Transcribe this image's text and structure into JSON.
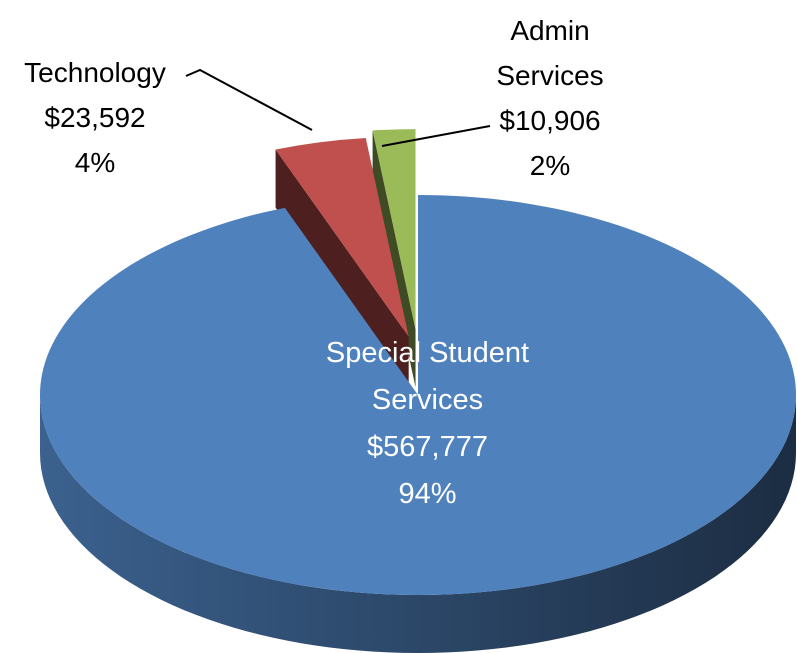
{
  "chart_data": {
    "type": "pie3d",
    "categories": [
      "Special Student Services",
      "Technology",
      "Admin Services"
    ],
    "values": [
      567777,
      23592,
      10906
    ],
    "value_labels": [
      "$567,777",
      "$23,592",
      "$10,906"
    ],
    "percents": [
      94,
      4,
      2
    ],
    "percent_labels": [
      "94%",
      "4%",
      "2%"
    ],
    "colors": [
      "#4f81bd",
      "#c0504d",
      "#9bbb59"
    ]
  }
}
